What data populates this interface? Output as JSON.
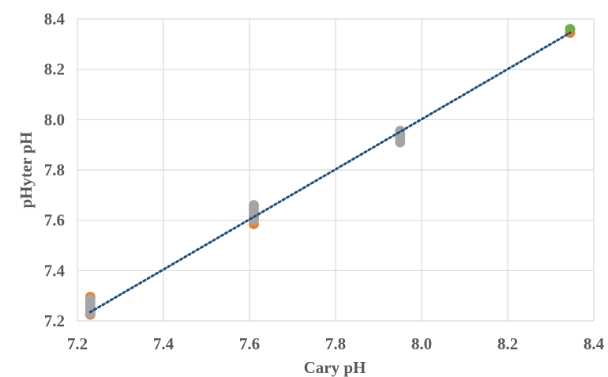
{
  "chart_data": {
    "type": "scatter",
    "title": "",
    "xlabel": "Cary pH",
    "ylabel": "pHyter pH",
    "xlim": [
      7.2,
      8.4
    ],
    "ylim": [
      7.2,
      8.4
    ],
    "x_ticks": [
      "7.2",
      "7.4",
      "7.6",
      "7.8",
      "8.0",
      "8.2",
      "8.4"
    ],
    "y_ticks": [
      "7.2",
      "7.4",
      "7.6",
      "7.8",
      "8.0",
      "8.2",
      "8.4"
    ],
    "grid": true,
    "legend": "none",
    "series": [
      {
        "color": "#ED7D31",
        "points": [
          {
            "x": 7.23,
            "y": 7.295
          },
          {
            "x": 7.23,
            "y": 7.225
          },
          {
            "x": 7.61,
            "y": 7.585
          },
          {
            "x": 7.61,
            "y": 7.61
          },
          {
            "x": 8.345,
            "y": 8.345
          }
        ]
      },
      {
        "color": "#A5A5A5",
        "points": [
          {
            "x": 7.23,
            "y": 7.285
          },
          {
            "x": 7.23,
            "y": 7.27
          },
          {
            "x": 7.23,
            "y": 7.255
          },
          {
            "x": 7.23,
            "y": 7.24
          },
          {
            "x": 7.23,
            "y": 7.23
          },
          {
            "x": 7.61,
            "y": 7.66
          },
          {
            "x": 7.61,
            "y": 7.645
          },
          {
            "x": 7.61,
            "y": 7.63
          },
          {
            "x": 7.61,
            "y": 7.615
          },
          {
            "x": 7.61,
            "y": 7.6
          },
          {
            "x": 7.95,
            "y": 7.955
          },
          {
            "x": 7.95,
            "y": 7.94
          },
          {
            "x": 7.95,
            "y": 7.925
          },
          {
            "x": 7.95,
            "y": 7.91
          }
        ]
      },
      {
        "color": "#70AD47",
        "points": [
          {
            "x": 8.345,
            "y": 8.36
          }
        ]
      }
    ],
    "trendline": {
      "color": "#1F4E79",
      "style": "dotted",
      "x": [
        7.23,
        8.345
      ],
      "y": [
        7.235,
        8.345
      ]
    }
  }
}
